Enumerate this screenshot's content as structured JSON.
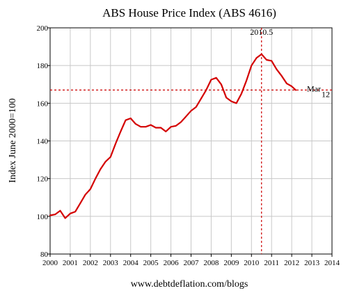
{
  "chart_data": {
    "type": "line",
    "title": "ABS House Price Index (ABS 4616)",
    "xlabel": "",
    "ylabel": "Index June 2000=100",
    "xlim": [
      2000,
      2014
    ],
    "ylim": [
      80,
      200
    ],
    "x_ticks": [
      2000,
      2001,
      2002,
      2003,
      2004,
      2005,
      2006,
      2007,
      2008,
      2009,
      2010,
      2011,
      2012,
      2013,
      2014
    ],
    "y_ticks": [
      80,
      100,
      120,
      140,
      160,
      180,
      200
    ],
    "grid": true,
    "series": [
      {
        "color": "#d40000",
        "points": [
          [
            2000.0,
            100.5
          ],
          [
            2000.25,
            101.0
          ],
          [
            2000.5,
            103.0
          ],
          [
            2000.75,
            99.0
          ],
          [
            2001.0,
            101.5
          ],
          [
            2001.25,
            102.5
          ],
          [
            2001.5,
            107.0
          ],
          [
            2001.75,
            111.5
          ],
          [
            2002.0,
            114.5
          ],
          [
            2002.25,
            120.0
          ],
          [
            2002.5,
            125.0
          ],
          [
            2002.75,
            129.0
          ],
          [
            2003.0,
            131.5
          ],
          [
            2003.25,
            138.5
          ],
          [
            2003.5,
            145.0
          ],
          [
            2003.75,
            151.0
          ],
          [
            2004.0,
            152.0
          ],
          [
            2004.25,
            149.0
          ],
          [
            2004.5,
            147.5
          ],
          [
            2004.75,
            147.5
          ],
          [
            2005.0,
            148.5
          ],
          [
            2005.25,
            147.0
          ],
          [
            2005.5,
            147.0
          ],
          [
            2005.75,
            145.0
          ],
          [
            2006.0,
            147.5
          ],
          [
            2006.25,
            148.0
          ],
          [
            2006.5,
            150.0
          ],
          [
            2006.75,
            153.0
          ],
          [
            2007.0,
            156.0
          ],
          [
            2007.25,
            158.0
          ],
          [
            2007.5,
            162.5
          ],
          [
            2007.75,
            167.0
          ],
          [
            2008.0,
            172.5
          ],
          [
            2008.25,
            173.5
          ],
          [
            2008.5,
            170.0
          ],
          [
            2008.75,
            163.0
          ],
          [
            2009.0,
            161.0
          ],
          [
            2009.25,
            160.0
          ],
          [
            2009.5,
            165.0
          ],
          [
            2009.75,
            172.0
          ],
          [
            2010.0,
            180.0
          ],
          [
            2010.25,
            184.0
          ],
          [
            2010.5,
            186.0
          ],
          [
            2010.75,
            183.0
          ],
          [
            2011.0,
            182.5
          ],
          [
            2011.25,
            178.0
          ],
          [
            2011.5,
            174.5
          ],
          [
            2011.75,
            170.5
          ],
          [
            2012.0,
            169.0
          ],
          [
            2012.2,
            167.0
          ]
        ]
      }
    ],
    "annotations": {
      "vline": {
        "x": 2010.5,
        "label": "2010.5"
      },
      "hline": {
        "y": 167,
        "label": "Mar",
        "sublabel": "12"
      },
      "line_color": "#cc0000"
    },
    "source": "www.debtdeflation.com/blogs"
  }
}
